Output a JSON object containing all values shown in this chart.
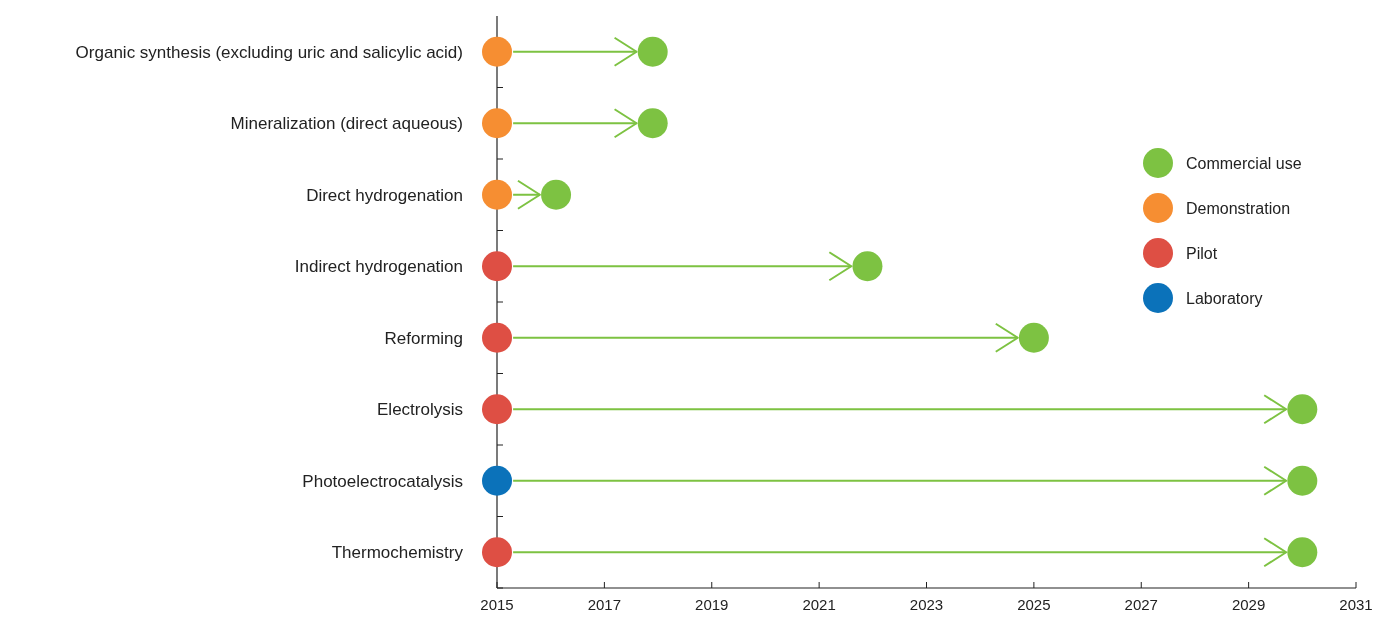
{
  "chart_data": {
    "type": "scatter",
    "orientation": "horizontal",
    "categories": [
      "Organic synthesis (excluding uric and salicylic acid)",
      "Mineralization (direct aqueous)",
      "Direct hydrogenation",
      "Indirect hydrogenation",
      "Reforming",
      "Electrolysis",
      "Photoelectrocatalysis",
      "Thermochemistry"
    ],
    "series": [
      {
        "type": "bar",
        "color": "#7dc242",
        "base": [
          2015.3,
          2015.3,
          2015.3,
          2015.3,
          2015.3,
          2015.3,
          2015.3,
          2015.3
        ],
        "values": [
          2.3,
          2.3,
          0.5,
          6.3,
          9.4,
          14.4,
          14.4,
          14.4
        ]
      },
      {
        "name": "Commercial use",
        "color": "#7dc242",
        "values": [
          2017.9,
          2017.9,
          2016.1,
          2021.9,
          2025,
          2030,
          2030,
          2030
        ]
      },
      {
        "name": "Demonstration",
        "color": "#f68e32",
        "values": [
          2015,
          2015,
          2015,
          null,
          null,
          null,
          null,
          null
        ]
      },
      {
        "name": "Pilot",
        "color": "#de4f44",
        "values": [
          null,
          null,
          null,
          2015,
          2015,
          2015,
          null,
          2015
        ]
      },
      {
        "name": "Laboratory",
        "color": "#0b72ba",
        "values": [
          null,
          null,
          null,
          null,
          null,
          null,
          2015,
          null
        ]
      }
    ],
    "xlim": [
      2015,
      2031
    ],
    "xticks": [
      2015,
      2017,
      2019,
      2021,
      2023,
      2025,
      2027,
      2029,
      2031
    ],
    "marker": "circle",
    "legend": "right",
    "tick_labels": "x",
    "grid": false
  }
}
